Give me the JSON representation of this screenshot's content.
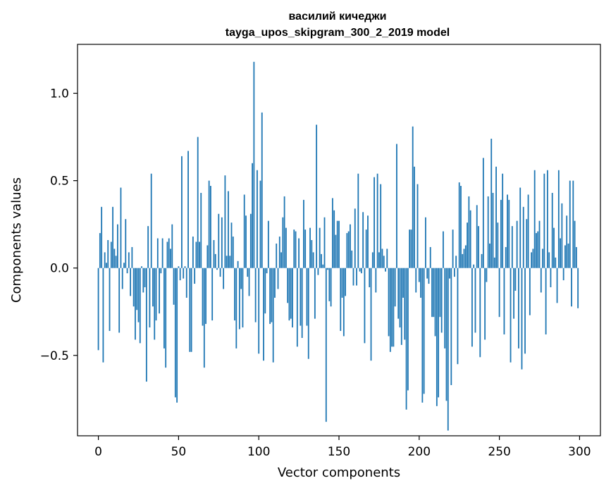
{
  "chart_data": {
    "type": "bar",
    "title": "василий кичеджи",
    "subtitle": "tayga_upos_skipgram_300_2_2019 model",
    "xlabel": "Vector components",
    "ylabel": "Components values",
    "xlim": [
      -13,
      313
    ],
    "ylim": [
      -0.96,
      1.28
    ],
    "xticks": [
      0,
      50,
      100,
      150,
      200,
      250,
      300
    ],
    "xtick_labels": [
      "0",
      "50",
      "100",
      "150",
      "200",
      "250",
      "300"
    ],
    "yticks": [
      -0.5,
      0.0,
      0.5,
      1.0
    ],
    "ytick_labels": [
      "−0.5",
      "0.0",
      "0.5",
      "1.0"
    ],
    "grid": false,
    "bar_color": "#1f77b4",
    "values": [
      -0.47,
      0.2,
      0.35,
      -0.54,
      0.09,
      0.03,
      0.16,
      -0.36,
      0.15,
      0.35,
      0.11,
      0.07,
      0.25,
      -0.37,
      0.46,
      -0.12,
      0.03,
      0.28,
      -0.03,
      0.09,
      -0.16,
      0.12,
      -0.22,
      -0.41,
      -0.24,
      -0.31,
      -0.43,
      0.01,
      -0.14,
      -0.11,
      -0.65,
      0.24,
      -0.34,
      0.54,
      -0.22,
      -0.41,
      -0.3,
      0.17,
      -0.26,
      -0.03,
      0.17,
      -0.46,
      -0.57,
      0.15,
      0.17,
      0.11,
      0.25,
      -0.21,
      -0.74,
      -0.77,
      0.01,
      -0.07,
      0.64,
      -0.06,
      0.01,
      -0.17,
      0.67,
      -0.48,
      -0.48,
      0.18,
      -0.09,
      0.15,
      0.75,
      0.15,
      0.43,
      -0.33,
      -0.57,
      -0.32,
      0.13,
      0.5,
      0.47,
      -0.3,
      0.16,
      0.08,
      -0.01,
      0.31,
      -0.05,
      0.29,
      -0.12,
      0.53,
      0.07,
      0.44,
      0.07,
      0.26,
      0.18,
      -0.3,
      -0.46,
      0.04,
      -0.35,
      -0.12,
      -0.34,
      0.42,
      0.3,
      -0.05,
      -0.16,
      0.31,
      0.6,
      1.18,
      -0.31,
      0.56,
      -0.49,
      0.5,
      0.89,
      -0.53,
      -0.26,
      -0.03,
      0.27,
      -0.32,
      -0.31,
      -0.54,
      -0.17,
      0.14,
      -0.12,
      0.18,
      0.09,
      0.29,
      0.41,
      0.23,
      -0.2,
      -0.3,
      -0.29,
      -0.34,
      0.22,
      0.21,
      -0.45,
      0.17,
      -0.33,
      -0.4,
      0.39,
      0.22,
      -0.33,
      -0.52,
      0.23,
      0.16,
      0.09,
      -0.29,
      0.82,
      -0.04,
      0.23,
      0.08,
      0.02,
      0.29,
      -0.88,
      -0.01,
      -0.19,
      -0.22,
      0.4,
      0.33,
      0.19,
      0.27,
      0.27,
      -0.36,
      -0.17,
      -0.39,
      -0.16,
      0.2,
      0.21,
      0.25,
      0.1,
      -0.1,
      0.34,
      -0.1,
      0.54,
      -0.02,
      -0.03,
      0.32,
      -0.43,
      0.22,
      0.3,
      -0.11,
      -0.53,
      0.09,
      0.52,
      -0.14,
      0.54,
      0.09,
      0.48,
      0.11,
      0.07,
      -0.02,
      0.11,
      -0.39,
      -0.48,
      -0.45,
      -0.45,
      -0.22,
      0.71,
      -0.29,
      -0.34,
      -0.44,
      -0.17,
      -0.41,
      -0.81,
      -0.7,
      0.22,
      0.22,
      0.81,
      0.58,
      -0.14,
      0.48,
      -0.08,
      -0.17,
      -0.77,
      -0.72,
      0.29,
      -0.06,
      -0.09,
      0.12,
      -0.28,
      -0.28,
      -0.39,
      -0.79,
      -0.74,
      -0.28,
      -0.37,
      0.21,
      -0.46,
      -0.76,
      -0.93,
      -0.06,
      -0.67,
      0.22,
      -0.05,
      0.07,
      -0.55,
      0.49,
      0.47,
      0.08,
      0.11,
      0.13,
      0.26,
      0.41,
      0.33,
      -0.45,
      0.02,
      -0.37,
      0.36,
      0.24,
      -0.51,
      0.08,
      0.63,
      -0.41,
      -0.08,
      0.41,
      0.14,
      0.74,
      0.43,
      0.06,
      0.58,
      0.26,
      -0.28,
      0.39,
      0.54,
      -0.38,
      0.12,
      0.42,
      0.39,
      -0.54,
      0.24,
      -0.29,
      -0.13,
      0.27,
      -0.46,
      0.46,
      -0.58,
      0.35,
      -0.49,
      0.28,
      0.42,
      -0.27,
      0.09,
      0.11,
      0.56,
      0.2,
      0.21,
      0.27,
      -0.14,
      0.11,
      0.54,
      -0.38,
      0.56,
      0.09,
      -0.11,
      0.43,
      0.23,
      0.06,
      -0.2,
      0.56,
      0.17,
      0.37,
      -0.07,
      0.13,
      0.3,
      0.14,
      0.5,
      -0.22,
      0.5,
      0.27,
      0.12,
      -0.23
    ]
  }
}
